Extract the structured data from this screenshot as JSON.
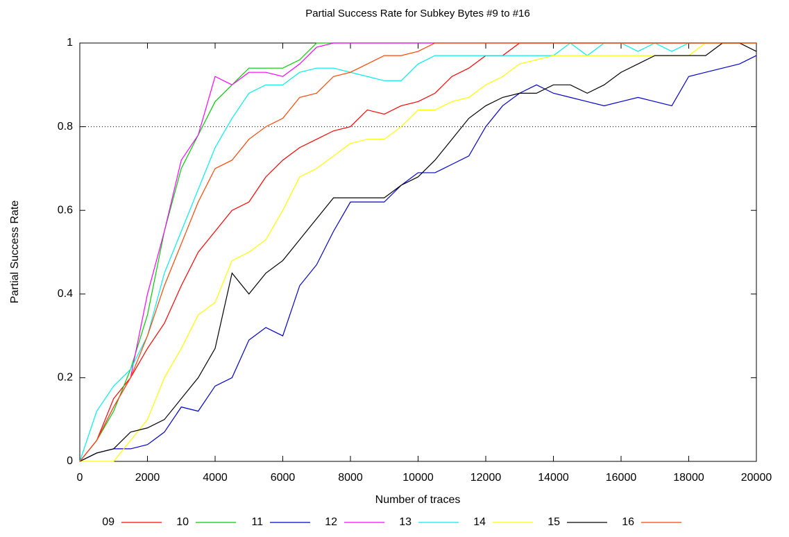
{
  "chart_data": {
    "type": "line",
    "title": "Partial Success Rate for Subkey Bytes #9 to #16",
    "x_label": "Number of traces",
    "y_label": "Partial Success Rate",
    "x": [
      0,
      500,
      1000,
      1500,
      2000,
      2500,
      3000,
      3500,
      4000,
      4500,
      5000,
      5500,
      6000,
      6500,
      7000,
      7500,
      8000,
      8500,
      9000,
      9500,
      10000,
      10500,
      11000,
      11500,
      12000,
      12500,
      13000,
      13500,
      14000,
      14500,
      15000,
      15500,
      16000,
      16500,
      17000,
      17500,
      18000,
      18500,
      19000,
      19500,
      20000
    ],
    "series": [
      {
        "name": "09",
        "color": "#ff0000",
        "values": [
          0,
          0.05,
          0.15,
          0.2,
          0.27,
          0.33,
          0.42,
          0.5,
          0.55,
          0.6,
          0.62,
          0.68,
          0.72,
          0.75,
          0.77,
          0.79,
          0.8,
          0.84,
          0.83,
          0.85,
          0.86,
          0.88,
          0.92,
          0.94,
          0.97,
          0.97,
          1,
          1,
          1,
          1,
          1,
          1,
          1,
          1,
          1,
          1,
          1,
          1,
          1,
          1,
          1
        ]
      },
      {
        "name": "10",
        "color": "#00cc00",
        "values": [
          0,
          0.05,
          0.12,
          0.22,
          0.35,
          0.55,
          0.7,
          0.78,
          0.86,
          0.9,
          0.94,
          0.94,
          0.94,
          0.96,
          1,
          1,
          1,
          1,
          1,
          1,
          1,
          1,
          1,
          1,
          1,
          1,
          1,
          1,
          1,
          1,
          1,
          1,
          1,
          1,
          1,
          1,
          1,
          1,
          1,
          1,
          1
        ]
      },
      {
        "name": "11",
        "color": "#0000cc",
        "values": [
          0,
          0.02,
          0.03,
          0.03,
          0.04,
          0.07,
          0.13,
          0.12,
          0.18,
          0.2,
          0.29,
          0.32,
          0.3,
          0.42,
          0.47,
          0.55,
          0.62,
          0.62,
          0.62,
          0.66,
          0.69,
          0.69,
          0.71,
          0.73,
          0.8,
          0.85,
          0.88,
          0.9,
          0.88,
          0.87,
          0.86,
          0.85,
          0.86,
          0.87,
          0.86,
          0.85,
          0.92,
          0.93,
          0.94,
          0.95,
          0.97
        ]
      },
      {
        "name": "12",
        "color": "#ff00ff",
        "values": [
          0,
          0.05,
          0.13,
          0.2,
          0.4,
          0.55,
          0.72,
          0.78,
          0.92,
          0.9,
          0.93,
          0.93,
          0.92,
          0.95,
          0.99,
          1,
          1,
          1,
          1,
          1,
          1,
          1,
          1,
          1,
          1,
          1,
          1,
          1,
          1,
          1,
          1,
          1,
          1,
          1,
          1,
          1,
          1,
          1,
          1,
          1,
          1
        ]
      },
      {
        "name": "13",
        "color": "#00eeee",
        "values": [
          0,
          0.12,
          0.18,
          0.22,
          0.3,
          0.45,
          0.55,
          0.65,
          0.75,
          0.82,
          0.88,
          0.9,
          0.9,
          0.93,
          0.94,
          0.94,
          0.93,
          0.92,
          0.91,
          0.91,
          0.95,
          0.97,
          0.97,
          0.97,
          0.97,
          0.97,
          0.97,
          0.97,
          0.97,
          1,
          0.97,
          1,
          1,
          0.98,
          1,
          0.98,
          1,
          1,
          1,
          1,
          1
        ]
      },
      {
        "name": "14",
        "color": "#ffff00",
        "values": [
          0,
          0,
          0,
          0.05,
          0.1,
          0.2,
          0.27,
          0.35,
          0.38,
          0.48,
          0.5,
          0.53,
          0.6,
          0.68,
          0.7,
          0.73,
          0.76,
          0.77,
          0.77,
          0.8,
          0.84,
          0.84,
          0.86,
          0.87,
          0.9,
          0.92,
          0.95,
          0.96,
          0.97,
          0.97,
          0.97,
          0.97,
          0.97,
          0.97,
          0.97,
          0.97,
          0.97,
          1,
          1,
          1,
          1
        ]
      },
      {
        "name": "15",
        "color": "#000000",
        "values": [
          0,
          0.02,
          0.03,
          0.07,
          0.08,
          0.1,
          0.15,
          0.2,
          0.27,
          0.45,
          0.4,
          0.45,
          0.48,
          0.53,
          0.58,
          0.63,
          0.63,
          0.63,
          0.63,
          0.66,
          0.68,
          0.72,
          0.77,
          0.82,
          0.85,
          0.87,
          0.88,
          0.88,
          0.9,
          0.9,
          0.88,
          0.9,
          0.93,
          0.95,
          0.97,
          0.97,
          0.97,
          0.97,
          1,
          1,
          0.98
        ]
      },
      {
        "name": "16",
        "color": "#ff4400",
        "values": [
          0,
          0.05,
          0.13,
          0.2,
          0.3,
          0.42,
          0.52,
          0.62,
          0.7,
          0.72,
          0.77,
          0.8,
          0.82,
          0.87,
          0.88,
          0.92,
          0.93,
          0.95,
          0.97,
          0.97,
          0.98,
          1,
          1,
          1,
          1,
          1,
          1,
          1,
          1,
          1,
          1,
          1,
          1,
          1,
          1,
          1,
          1,
          1,
          1,
          1,
          1
        ]
      }
    ],
    "xlim": [
      0,
      20000
    ],
    "ylim": [
      0,
      1
    ],
    "xticks": [
      0,
      2000,
      4000,
      6000,
      8000,
      10000,
      12000,
      14000,
      16000,
      18000,
      20000
    ],
    "yticks": [
      0,
      0.2,
      0.4,
      0.6,
      0.8,
      1
    ],
    "reference_line": 0.8,
    "legend": "bottom"
  }
}
